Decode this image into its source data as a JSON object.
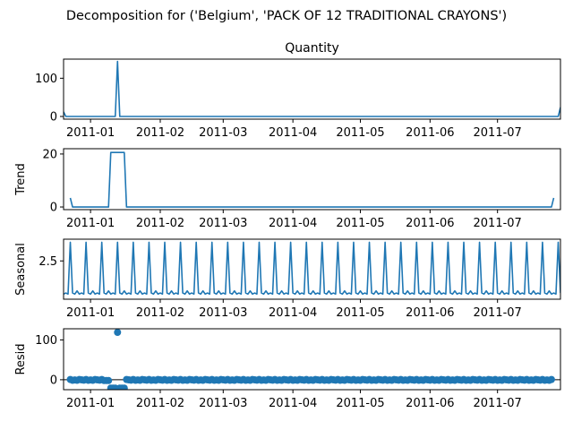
{
  "figure": {
    "suptitle": "Decomposition for ('Belgium', 'PACK OF 12 TRADITIONAL CRAYONS')"
  },
  "chart_data": {
    "type": "line",
    "x_range": [
      "2010-12-20",
      "2011-07-29"
    ],
    "x_ticks": [
      "2011-01-01",
      "2011-02-01",
      "2011-03-01",
      "2011-04-01",
      "2011-05-01",
      "2011-06-01",
      "2011-07-01"
    ],
    "x_tick_labels": [
      "2011-01",
      "2011-02",
      "2011-03",
      "2011-04",
      "2011-05",
      "2011-06",
      "2011-07"
    ],
    "line_color": "#1f77b4",
    "panels": [
      {
        "id": "observed",
        "kind": "line",
        "title": "Quantity",
        "ylabel": "",
        "ylim": [
          -7,
          150
        ],
        "y_ticks": [
          0,
          100
        ],
        "y_tick_labels": [
          "0",
          "100"
        ],
        "points": [
          [
            "2010-12-20",
            12
          ],
          [
            "2010-12-21",
            0
          ],
          [
            "2011-01-12",
            0
          ],
          [
            "2011-01-13",
            144
          ],
          [
            "2011-01-14",
            0
          ],
          [
            "2011-07-28",
            0
          ],
          [
            "2011-07-29",
            24
          ]
        ]
      },
      {
        "id": "trend",
        "kind": "line",
        "ylabel": "Trend",
        "ylim": [
          -1,
          22
        ],
        "y_ticks": [
          0,
          20
        ],
        "y_tick_labels": [
          "0",
          "20"
        ],
        "points": [
          [
            "2010-12-23",
            3.4
          ],
          [
            "2010-12-24",
            0
          ],
          [
            "2011-01-09",
            0
          ],
          [
            "2011-01-10",
            20.6
          ],
          [
            "2011-01-16",
            20.6
          ],
          [
            "2011-01-17",
            0
          ],
          [
            "2011-07-25",
            0
          ],
          [
            "2011-07-26",
            3.4
          ]
        ]
      },
      {
        "id": "seasonal",
        "kind": "seasonal",
        "ylabel": "Seasonal",
        "ylim": [
          -1.2,
          4.6
        ],
        "y_ticks": [
          2.5
        ],
        "y_tick_labels": [
          "2.5"
        ],
        "period_days": 7,
        "first_peak": "2010-12-23",
        "peak_value": 4.3,
        "base_values": [
          -0.6,
          -0.7,
          -0.4,
          -0.7,
          -0.6,
          -0.7
        ],
        "start": "2010-12-20",
        "end": "2011-07-29"
      },
      {
        "id": "resid",
        "kind": "scatter",
        "ylabel": "Resid",
        "ylim": [
          -25,
          128
        ],
        "y_ticks": [
          0,
          100
        ],
        "y_tick_labels": [
          "0",
          "100"
        ],
        "baseline": 0,
        "start": "2010-12-23",
        "end": "2011-07-25",
        "base_values": [
          0.6,
          -1.4,
          -0.6,
          -1.4,
          0.6,
          -0.3,
          -1.2
        ],
        "overrides": [
          [
            "2011-01-07",
            -2
          ],
          [
            "2011-01-08",
            -2
          ],
          [
            "2011-01-09",
            -2
          ],
          [
            "2011-01-10",
            -21
          ],
          [
            "2011-01-11",
            -21
          ],
          [
            "2011-01-12",
            -21
          ],
          [
            "2011-01-13",
            119
          ],
          [
            "2011-01-14",
            -21
          ],
          [
            "2011-01-15",
            -21
          ],
          [
            "2011-01-16",
            -21
          ]
        ]
      }
    ]
  }
}
